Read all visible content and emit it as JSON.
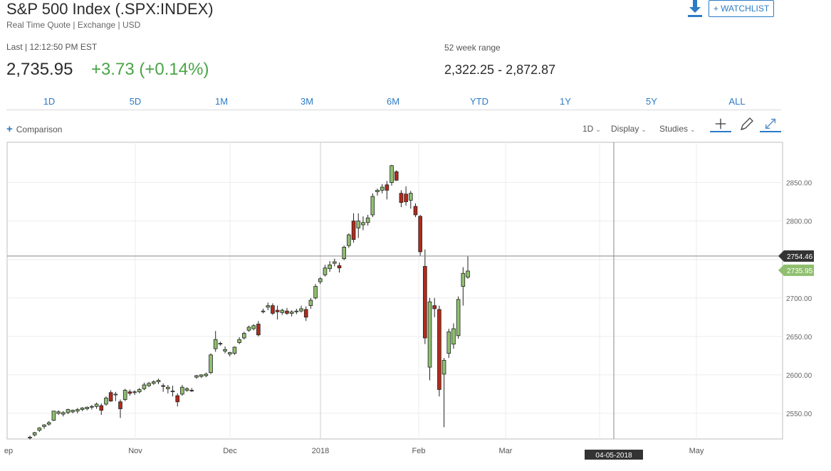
{
  "header": {
    "title": "S&P 500 Index (.SPX:INDEX)",
    "subtitle": "Real Time Quote | Exchange | USD",
    "watchlist_label": "+ WATCHLIST",
    "download_icon": "download-icon"
  },
  "quote": {
    "last_label": "Last | 12:12:50 PM EST",
    "price": "2,735.95",
    "change": "+3.73 (+0.14%)",
    "change_color": "#4aa447",
    "range_label": "52 week range",
    "range_value": "2,322.25 - 2,872.87"
  },
  "range_tabs": [
    "1D",
    "5D",
    "1M",
    "3M",
    "6M",
    "YTD",
    "1Y",
    "5Y",
    "ALL"
  ],
  "toolbar": {
    "comparison_label": "Comparison",
    "interval_label": "1D",
    "display_label": "Display",
    "studies_label": "Studies",
    "icons": [
      "crosshair-icon",
      "pencil-icon",
      "expand-icon"
    ]
  },
  "chart_data": {
    "type": "candlestick",
    "y_ticks": [
      2550,
      2600,
      2650,
      2700,
      2750,
      2800,
      2850
    ],
    "y_tick_labels": [
      "2550.00",
      "2600.00",
      "2650.00",
      "2700.00",
      "2800.00",
      "2850.00"
    ],
    "ylim": [
      2530,
      2890
    ],
    "x_labels": [
      "ep",
      "Nov",
      "Dec",
      "2018",
      "Feb",
      "Mar",
      "May"
    ],
    "crosshair_price_label": "2754.46",
    "crosshair_price": 2754.46,
    "crosshair_date_label": "04-05-2018",
    "last_price_label": "2735.95",
    "last_price": 2735.95,
    "up_color": "#8fbf6f",
    "down_color": "#b22a1b",
    "candles": [
      {
        "o": 2519,
        "h": 2521,
        "l": 2516,
        "c": 2519
      },
      {
        "o": 2522,
        "h": 2526,
        "l": 2520,
        "c": 2525
      },
      {
        "o": 2528,
        "h": 2532,
        "l": 2526,
        "c": 2531
      },
      {
        "o": 2533,
        "h": 2536,
        "l": 2530,
        "c": 2535
      },
      {
        "o": 2536,
        "h": 2540,
        "l": 2534,
        "c": 2538
      },
      {
        "o": 2541,
        "h": 2553,
        "l": 2540,
        "c": 2553
      },
      {
        "o": 2550,
        "h": 2554,
        "l": 2548,
        "c": 2552
      },
      {
        "o": 2549,
        "h": 2553,
        "l": 2546,
        "c": 2551
      },
      {
        "o": 2551,
        "h": 2556,
        "l": 2549,
        "c": 2555
      },
      {
        "o": 2552,
        "h": 2555,
        "l": 2550,
        "c": 2554
      },
      {
        "o": 2553,
        "h": 2557,
        "l": 2550,
        "c": 2555
      },
      {
        "o": 2555,
        "h": 2558,
        "l": 2553,
        "c": 2557
      },
      {
        "o": 2556,
        "h": 2559,
        "l": 2554,
        "c": 2558
      },
      {
        "o": 2558,
        "h": 2561,
        "l": 2555,
        "c": 2559
      },
      {
        "o": 2559,
        "h": 2564,
        "l": 2556,
        "c": 2562
      },
      {
        "o": 2560,
        "h": 2563,
        "l": 2548,
        "c": 2554
      },
      {
        "o": 2562,
        "h": 2572,
        "l": 2560,
        "c": 2570
      },
      {
        "o": 2577,
        "h": 2580,
        "l": 2565,
        "c": 2566
      },
      {
        "o": 2574,
        "h": 2578,
        "l": 2566,
        "c": 2575
      },
      {
        "o": 2565,
        "h": 2568,
        "l": 2544,
        "c": 2556
      },
      {
        "o": 2568,
        "h": 2582,
        "l": 2566,
        "c": 2580
      },
      {
        "o": 2578,
        "h": 2581,
        "l": 2573,
        "c": 2576
      },
      {
        "o": 2577,
        "h": 2580,
        "l": 2574,
        "c": 2578
      },
      {
        "o": 2578,
        "h": 2583,
        "l": 2576,
        "c": 2581
      },
      {
        "o": 2582,
        "h": 2590,
        "l": 2580,
        "c": 2587
      },
      {
        "o": 2586,
        "h": 2591,
        "l": 2584,
        "c": 2589
      },
      {
        "o": 2589,
        "h": 2593,
        "l": 2587,
        "c": 2591
      },
      {
        "o": 2591,
        "h": 2595,
        "l": 2588,
        "c": 2593
      },
      {
        "o": 2586,
        "h": 2589,
        "l": 2578,
        "c": 2585
      },
      {
        "o": 2582,
        "h": 2587,
        "l": 2576,
        "c": 2584
      },
      {
        "o": 2579,
        "h": 2586,
        "l": 2572,
        "c": 2579
      },
      {
        "o": 2573,
        "h": 2576,
        "l": 2559,
        "c": 2565
      },
      {
        "o": 2575,
        "h": 2587,
        "l": 2573,
        "c": 2584
      },
      {
        "o": 2580,
        "h": 2584,
        "l": 2578,
        "c": 2582
      },
      {
        "o": 2580,
        "h": 2583,
        "l": 2578,
        "c": 2579
      },
      {
        "o": 2597,
        "h": 2600,
        "l": 2595,
        "c": 2599
      },
      {
        "o": 2598,
        "h": 2601,
        "l": 2596,
        "c": 2600
      },
      {
        "o": 2599,
        "h": 2603,
        "l": 2597,
        "c": 2601
      },
      {
        "o": 2603,
        "h": 2628,
        "l": 2601,
        "c": 2626
      },
      {
        "o": 2634,
        "h": 2657,
        "l": 2630,
        "c": 2646
      },
      {
        "o": 2640,
        "h": 2643,
        "l": 2638,
        "c": 2641
      },
      {
        "o": 2631,
        "h": 2637,
        "l": 2628,
        "c": 2633
      },
      {
        "o": 2627,
        "h": 2630,
        "l": 2624,
        "c": 2629
      },
      {
        "o": 2628,
        "h": 2637,
        "l": 2626,
        "c": 2636
      },
      {
        "o": 2642,
        "h": 2649,
        "l": 2640,
        "c": 2646
      },
      {
        "o": 2648,
        "h": 2656,
        "l": 2646,
        "c": 2654
      },
      {
        "o": 2658,
        "h": 2664,
        "l": 2656,
        "c": 2662
      },
      {
        "o": 2660,
        "h": 2666,
        "l": 2658,
        "c": 2664
      },
      {
        "o": 2666,
        "h": 2670,
        "l": 2650,
        "c": 2652
      },
      {
        "o": 2682,
        "h": 2686,
        "l": 2680,
        "c": 2683
      },
      {
        "o": 2688,
        "h": 2694,
        "l": 2684,
        "c": 2690
      },
      {
        "o": 2690,
        "h": 2693,
        "l": 2678,
        "c": 2680
      },
      {
        "o": 2684,
        "h": 2690,
        "l": 2672,
        "c": 2682
      },
      {
        "o": 2681,
        "h": 2686,
        "l": 2678,
        "c": 2684
      },
      {
        "o": 2683,
        "h": 2687,
        "l": 2678,
        "c": 2680
      },
      {
        "o": 2680,
        "h": 2684,
        "l": 2676,
        "c": 2682
      },
      {
        "o": 2682,
        "h": 2686,
        "l": 2679,
        "c": 2683
      },
      {
        "o": 2683,
        "h": 2690,
        "l": 2681,
        "c": 2686
      },
      {
        "o": 2685,
        "h": 2689,
        "l": 2670,
        "c": 2675
      },
      {
        "o": 2690,
        "h": 2700,
        "l": 2686,
        "c": 2697
      },
      {
        "o": 2700,
        "h": 2718,
        "l": 2698,
        "c": 2715
      },
      {
        "o": 2721,
        "h": 2727,
        "l": 2718,
        "c": 2725
      },
      {
        "o": 2730,
        "h": 2743,
        "l": 2728,
        "c": 2739
      },
      {
        "o": 2738,
        "h": 2748,
        "l": 2734,
        "c": 2743
      },
      {
        "o": 2745,
        "h": 2751,
        "l": 2741,
        "c": 2747
      },
      {
        "o": 2742,
        "h": 2746,
        "l": 2733,
        "c": 2739
      },
      {
        "o": 2751,
        "h": 2768,
        "l": 2749,
        "c": 2766
      },
      {
        "o": 2768,
        "h": 2784,
        "l": 2765,
        "c": 2782
      },
      {
        "o": 2800,
        "h": 2810,
        "l": 2772,
        "c": 2776
      },
      {
        "o": 2791,
        "h": 2810,
        "l": 2778,
        "c": 2800
      },
      {
        "o": 2795,
        "h": 2806,
        "l": 2788,
        "c": 2798
      },
      {
        "o": 2798,
        "h": 2808,
        "l": 2794,
        "c": 2804
      },
      {
        "o": 2808,
        "h": 2836,
        "l": 2805,
        "c": 2832
      },
      {
        "o": 2838,
        "h": 2842,
        "l": 2833,
        "c": 2840
      },
      {
        "o": 2840,
        "h": 2848,
        "l": 2836,
        "c": 2844
      },
      {
        "o": 2847,
        "h": 2852,
        "l": 2828,
        "c": 2840
      },
      {
        "o": 2850,
        "h": 2873,
        "l": 2846,
        "c": 2872
      },
      {
        "o": 2864,
        "h": 2866,
        "l": 2852,
        "c": 2853
      },
      {
        "o": 2836,
        "h": 2840,
        "l": 2818,
        "c": 2824
      },
      {
        "o": 2835,
        "h": 2845,
        "l": 2820,
        "c": 2825
      },
      {
        "o": 2827,
        "h": 2839,
        "l": 2816,
        "c": 2836
      },
      {
        "o": 2819,
        "h": 2823,
        "l": 2805,
        "c": 2808
      },
      {
        "o": 2806,
        "h": 2808,
        "l": 2755,
        "c": 2760
      },
      {
        "o": 2741,
        "h": 2763,
        "l": 2640,
        "c": 2648
      },
      {
        "o": 2610,
        "h": 2700,
        "l": 2593,
        "c": 2695
      },
      {
        "o": 2690,
        "h": 2700,
        "l": 2675,
        "c": 2686
      },
      {
        "o": 2685,
        "h": 2690,
        "l": 2572,
        "c": 2581
      },
      {
        "o": 2601,
        "h": 2622,
        "l": 2532,
        "c": 2619
      },
      {
        "o": 2628,
        "h": 2660,
        "l": 2622,
        "c": 2656
      },
      {
        "o": 2640,
        "h": 2667,
        "l": 2634,
        "c": 2660
      },
      {
        "o": 2651,
        "h": 2702,
        "l": 2647,
        "c": 2698
      },
      {
        "o": 2715,
        "h": 2740,
        "l": 2690,
        "c": 2732
      },
      {
        "o": 2727,
        "h": 2754,
        "l": 2725,
        "c": 2735
      }
    ]
  }
}
